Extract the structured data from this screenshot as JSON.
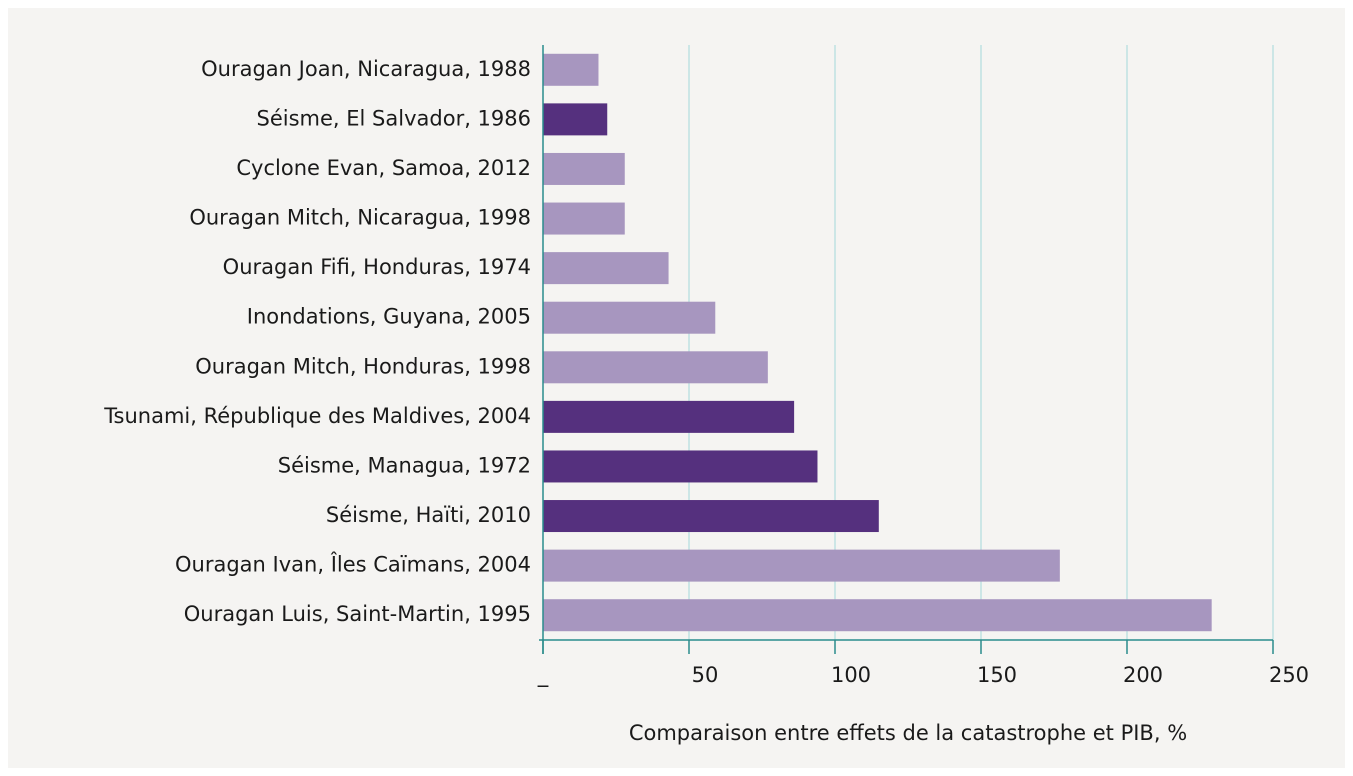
{
  "chart_data": {
    "type": "barh",
    "categories": [
      "Ouragan Joan, Nicaragua, 1988",
      "Séisme, El Salvador, 1986",
      "Cyclone Evan, Samoa, 2012",
      "Ouragan Mitch, Nicaragua, 1998",
      "Ouragan Fifi, Honduras, 1974",
      "Inondations, Guyana, 2005",
      "Ouragan Mitch, Honduras, 1998",
      "Tsunami, République des Maldives, 2004",
      "Séisme, Managua, 1972",
      "Séisme, Haïti, 2010",
      "Ouragan Ivan, Îles Caïmans, 2004",
      "Ouragan Luis, Saint-Martin, 1995"
    ],
    "values": [
      19,
      22,
      28,
      28,
      43,
      59,
      77,
      86,
      94,
      115,
      177,
      229
    ],
    "colors": [
      "#a796bf",
      "#55307e",
      "#a796bf",
      "#a796bf",
      "#a796bf",
      "#a796bf",
      "#a796bf",
      "#55307e",
      "#55307e",
      "#55307e",
      "#a796bf",
      "#a796bf"
    ],
    "xlabel": "Comparaison entre effets de la catastrophe et PIB, %",
    "xlim": [
      0,
      250
    ],
    "xticks": [
      {
        "value": 0,
        "label": "_"
      },
      50,
      100,
      150,
      200,
      250
    ],
    "grid": true
  }
}
